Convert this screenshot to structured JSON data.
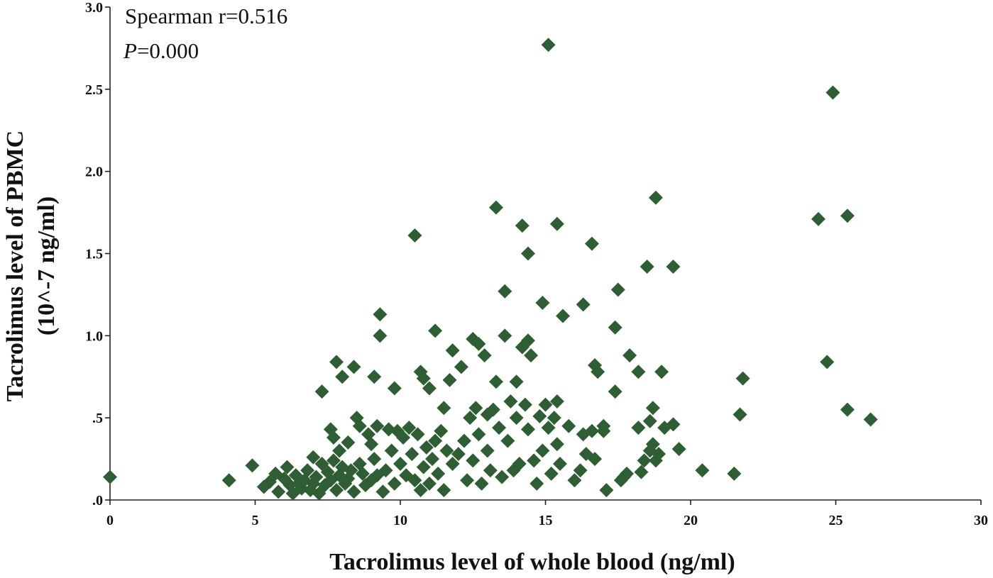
{
  "chart_data": {
    "type": "scatter",
    "xlabel": "Tacrolimus level of whole blood (ng/ml)",
    "ylabel_line1": "Tacrolimus level of PBMC",
    "ylabel_line2": "(10^-7 ng/ml)",
    "annotation_line1": "Spearman r=0.516",
    "annotation_p_symbol": "P",
    "annotation_p_value": "=0.000",
    "xlim": [
      0,
      30
    ],
    "ylim": [
      0,
      3.0
    ],
    "x_ticks": [
      0,
      5,
      10,
      15,
      20,
      25,
      30
    ],
    "x_tick_labels": [
      "0",
      "5",
      "10",
      "15",
      "20",
      "25",
      "30"
    ],
    "y_ticks": [
      0,
      0.5,
      1.0,
      1.5,
      2.0,
      2.5,
      3.0
    ],
    "y_tick_labels": [
      ".0",
      ".5",
      "1.0",
      "1.5",
      "2.0",
      "2.5",
      "3.0"
    ],
    "marker": "diamond",
    "marker_color": "#2f5d34",
    "points": [
      [
        0.0,
        0.14
      ],
      [
        4.1,
        0.12
      ],
      [
        4.9,
        0.21
      ],
      [
        5.3,
        0.08
      ],
      [
        5.5,
        0.11
      ],
      [
        5.7,
        0.16
      ],
      [
        5.8,
        0.05
      ],
      [
        6.0,
        0.13
      ],
      [
        6.1,
        0.2
      ],
      [
        6.2,
        0.09
      ],
      [
        6.3,
        0.04
      ],
      [
        6.4,
        0.15
      ],
      [
        6.5,
        0.1
      ],
      [
        6.6,
        0.07
      ],
      [
        6.7,
        0.12
      ],
      [
        6.8,
        0.18
      ],
      [
        6.9,
        0.06
      ],
      [
        7.0,
        0.1
      ],
      [
        7.0,
        0.26
      ],
      [
        7.1,
        0.14
      ],
      [
        7.2,
        0.04
      ],
      [
        7.3,
        0.66
      ],
      [
        7.3,
        0.22
      ],
      [
        7.4,
        0.09
      ],
      [
        7.5,
        0.17
      ],
      [
        7.6,
        0.43
      ],
      [
        7.6,
        0.12
      ],
      [
        7.7,
        0.38
      ],
      [
        7.7,
        0.24
      ],
      [
        7.8,
        0.84
      ],
      [
        7.8,
        0.06
      ],
      [
        7.9,
        0.3
      ],
      [
        7.9,
        0.15
      ],
      [
        8.0,
        0.75
      ],
      [
        8.0,
        0.2
      ],
      [
        8.1,
        0.1
      ],
      [
        8.2,
        0.35
      ],
      [
        8.2,
        0.13
      ],
      [
        8.3,
        0.18
      ],
      [
        8.4,
        0.81
      ],
      [
        8.4,
        0.05
      ],
      [
        8.5,
        0.5
      ],
      [
        8.6,
        0.45
      ],
      [
        8.6,
        0.22
      ],
      [
        8.7,
        0.16
      ],
      [
        8.8,
        0.09
      ],
      [
        8.9,
        0.4
      ],
      [
        9.0,
        0.34
      ],
      [
        9.0,
        0.12
      ],
      [
        9.1,
        0.75
      ],
      [
        9.1,
        0.25
      ],
      [
        9.2,
        0.45
      ],
      [
        9.2,
        0.15
      ],
      [
        9.3,
        1.13
      ],
      [
        9.3,
        1.0
      ],
      [
        9.4,
        0.05
      ],
      [
        9.5,
        0.18
      ],
      [
        9.6,
        0.43
      ],
      [
        9.7,
        0.3
      ],
      [
        9.8,
        0.68
      ],
      [
        9.8,
        0.1
      ],
      [
        9.9,
        0.42
      ],
      [
        10.0,
        0.22
      ],
      [
        10.1,
        0.38
      ],
      [
        10.2,
        0.15
      ],
      [
        10.3,
        0.44
      ],
      [
        10.4,
        0.28
      ],
      [
        10.5,
        1.61
      ],
      [
        10.5,
        0.12
      ],
      [
        10.6,
        0.4
      ],
      [
        10.7,
        0.78
      ],
      [
        10.7,
        0.06
      ],
      [
        10.8,
        0.74
      ],
      [
        10.8,
        0.2
      ],
      [
        10.9,
        0.32
      ],
      [
        11.0,
        0.68
      ],
      [
        11.0,
        0.1
      ],
      [
        11.1,
        0.25
      ],
      [
        11.2,
        1.03
      ],
      [
        11.2,
        0.36
      ],
      [
        11.3,
        0.16
      ],
      [
        11.4,
        0.42
      ],
      [
        11.5,
        0.56
      ],
      [
        11.5,
        0.06
      ],
      [
        11.6,
        0.3
      ],
      [
        11.7,
        0.73
      ],
      [
        11.8,
        0.91
      ],
      [
        11.8,
        0.22
      ],
      [
        12.0,
        0.28
      ],
      [
        12.1,
        0.81
      ],
      [
        12.2,
        0.36
      ],
      [
        12.3,
        0.12
      ],
      [
        12.4,
        0.5
      ],
      [
        12.5,
        0.98
      ],
      [
        12.5,
        0.24
      ],
      [
        12.6,
        0.56
      ],
      [
        12.7,
        0.95
      ],
      [
        12.7,
        0.4
      ],
      [
        12.8,
        0.1
      ],
      [
        12.9,
        0.88
      ],
      [
        13.0,
        0.52
      ],
      [
        13.0,
        0.3
      ],
      [
        13.1,
        0.18
      ],
      [
        13.2,
        0.55
      ],
      [
        13.3,
        1.78
      ],
      [
        13.3,
        0.72
      ],
      [
        13.4,
        0.44
      ],
      [
        13.5,
        0.14
      ],
      [
        13.6,
        1.27
      ],
      [
        13.6,
        1.0
      ],
      [
        13.7,
        0.36
      ],
      [
        13.8,
        0.6
      ],
      [
        13.9,
        0.18
      ],
      [
        14.0,
        0.72
      ],
      [
        14.0,
        0.5
      ],
      [
        14.1,
        0.22
      ],
      [
        14.2,
        1.67
      ],
      [
        14.2,
        0.93
      ],
      [
        14.3,
        0.58
      ],
      [
        14.4,
        1.5
      ],
      [
        14.4,
        0.97
      ],
      [
        14.4,
        0.43
      ],
      [
        14.5,
        0.88
      ],
      [
        14.6,
        0.24
      ],
      [
        14.7,
        0.1
      ],
      [
        14.8,
        0.51
      ],
      [
        14.9,
        1.2
      ],
      [
        14.9,
        0.3
      ],
      [
        15.0,
        0.58
      ],
      [
        15.1,
        2.77
      ],
      [
        15.1,
        0.44
      ],
      [
        15.2,
        0.16
      ],
      [
        15.3,
        0.5
      ],
      [
        15.4,
        1.68
      ],
      [
        15.4,
        0.6
      ],
      [
        15.4,
        0.34
      ],
      [
        15.5,
        0.22
      ],
      [
        15.6,
        1.12
      ],
      [
        15.8,
        0.45
      ],
      [
        16.0,
        0.12
      ],
      [
        16.2,
        0.18
      ],
      [
        16.3,
        1.19
      ],
      [
        16.3,
        0.4
      ],
      [
        16.4,
        0.28
      ],
      [
        16.6,
        1.56
      ],
      [
        16.6,
        0.42
      ],
      [
        16.7,
        0.82
      ],
      [
        16.7,
        0.25
      ],
      [
        16.8,
        0.78
      ],
      [
        17.0,
        0.45
      ],
      [
        17.0,
        0.42
      ],
      [
        17.1,
        0.06
      ],
      [
        17.4,
        1.05
      ],
      [
        17.4,
        0.66
      ],
      [
        17.5,
        1.28
      ],
      [
        17.6,
        0.12
      ],
      [
        17.7,
        0.14
      ],
      [
        17.8,
        0.16
      ],
      [
        17.9,
        0.88
      ],
      [
        18.2,
        0.78
      ],
      [
        18.2,
        0.44
      ],
      [
        18.3,
        0.17
      ],
      [
        18.4,
        0.24
      ],
      [
        18.5,
        1.42
      ],
      [
        18.6,
        0.48
      ],
      [
        18.6,
        0.3
      ],
      [
        18.7,
        0.56
      ],
      [
        18.7,
        0.34
      ],
      [
        18.8,
        1.84
      ],
      [
        18.8,
        0.24
      ],
      [
        18.9,
        0.28
      ],
      [
        19.0,
        0.78
      ],
      [
        19.1,
        0.44
      ],
      [
        19.4,
        1.42
      ],
      [
        19.4,
        0.46
      ],
      [
        19.6,
        0.31
      ],
      [
        20.4,
        0.18
      ],
      [
        21.5,
        0.16
      ],
      [
        21.7,
        0.52
      ],
      [
        21.8,
        0.74
      ],
      [
        24.4,
        1.71
      ],
      [
        24.7,
        0.84
      ],
      [
        24.9,
        2.48
      ],
      [
        25.4,
        1.73
      ],
      [
        25.4,
        0.55
      ],
      [
        26.2,
        0.49
      ]
    ]
  }
}
